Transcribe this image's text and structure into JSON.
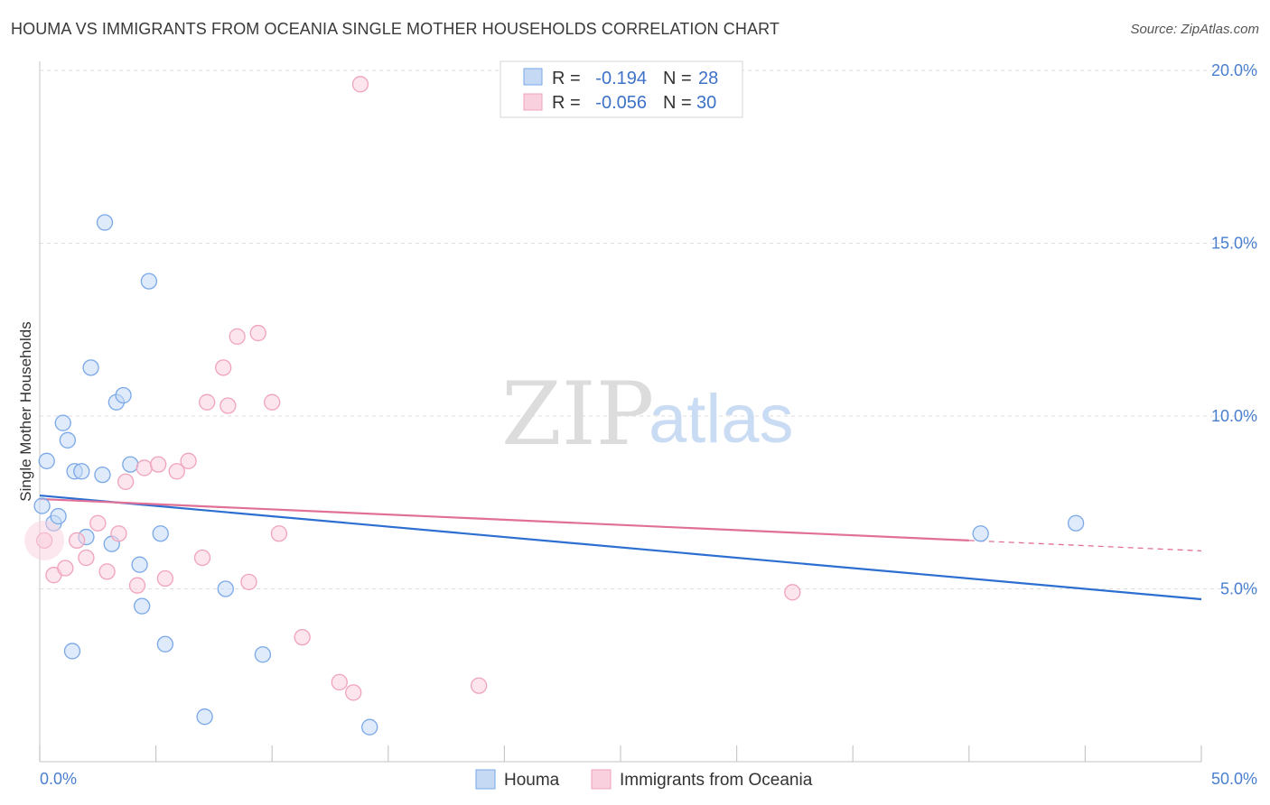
{
  "title": "HOUMA VS IMMIGRANTS FROM OCEANIA SINGLE MOTHER HOUSEHOLDS CORRELATION CHART",
  "source": "Source: ZipAtlas.com",
  "watermark": {
    "zip": "ZIP",
    "atlas": "atlas"
  },
  "chart_data": {
    "type": "scatter",
    "title": "HOUMA VS IMMIGRANTS FROM OCEANIA SINGLE MOTHER HOUSEHOLDS CORRELATION CHART",
    "xlabel": "",
    "ylabel": "Single Mother Households",
    "xlim": [
      0,
      50
    ],
    "ylim": [
      0,
      20.5
    ],
    "x_tick_labels": [
      "0.0%",
      "50.0%"
    ],
    "y_ticks": [
      5,
      10,
      15,
      20
    ],
    "y_tick_labels": [
      "5.0%",
      "10.0%",
      "15.0%",
      "20.0%"
    ],
    "legend_position": "top-center",
    "series": [
      {
        "name": "Houma",
        "color": "#7aa8e8",
        "fill": "#c5d9f5",
        "line_color": "#2d6fd1",
        "R_label": "R =",
        "R": "-0.194",
        "N_label": "N =",
        "N": "28",
        "trend": {
          "x0": 0,
          "y0": 7.7,
          "x1": 50,
          "y1": 4.7
        },
        "points": [
          [
            0.1,
            7.4
          ],
          [
            0.3,
            8.7
          ],
          [
            0.6,
            6.9
          ],
          [
            0.8,
            7.1
          ],
          [
            1.0,
            9.8
          ],
          [
            1.2,
            9.3
          ],
          [
            1.4,
            3.2
          ],
          [
            1.5,
            8.4
          ],
          [
            1.8,
            8.4
          ],
          [
            2.0,
            6.5
          ],
          [
            2.2,
            11.4
          ],
          [
            2.7,
            8.3
          ],
          [
            2.8,
            15.6
          ],
          [
            3.1,
            6.3
          ],
          [
            3.3,
            10.4
          ],
          [
            3.6,
            10.6
          ],
          [
            3.9,
            8.6
          ],
          [
            4.3,
            5.7
          ],
          [
            4.4,
            4.5
          ],
          [
            4.7,
            13.9
          ],
          [
            5.2,
            6.6
          ],
          [
            5.4,
            3.4
          ],
          [
            7.1,
            1.3
          ],
          [
            8.0,
            5.0
          ],
          [
            9.6,
            3.1
          ],
          [
            14.2,
            1.0
          ],
          [
            40.5,
            6.6
          ],
          [
            44.6,
            6.9
          ]
        ]
      },
      {
        "name": "Immigrants from Oceania",
        "color": "#f0a3bc",
        "fill": "#f9d0dd",
        "line_color": "#e07097",
        "R_label": "R =",
        "R": "-0.056",
        "N_label": "N =",
        "N": "30",
        "trend": {
          "x0": 0,
          "y0": 7.6,
          "x1": 40,
          "y1": 6.4,
          "dash_x1": 50,
          "dash_y1": 6.1
        },
        "points": [
          [
            0.2,
            6.4
          ],
          [
            0.6,
            5.4
          ],
          [
            1.1,
            5.6
          ],
          [
            1.6,
            6.4
          ],
          [
            2.0,
            5.9
          ],
          [
            2.5,
            6.9
          ],
          [
            2.9,
            5.5
          ],
          [
            3.4,
            6.6
          ],
          [
            3.7,
            8.1
          ],
          [
            4.2,
            5.1
          ],
          [
            4.5,
            8.5
          ],
          [
            5.1,
            8.6
          ],
          [
            5.4,
            5.3
          ],
          [
            5.9,
            8.4
          ],
          [
            6.4,
            8.7
          ],
          [
            7.0,
            5.9
          ],
          [
            7.2,
            10.4
          ],
          [
            7.9,
            11.4
          ],
          [
            8.1,
            10.3
          ],
          [
            8.5,
            12.3
          ],
          [
            9.0,
            5.2
          ],
          [
            9.4,
            12.4
          ],
          [
            10.0,
            10.4
          ],
          [
            10.3,
            6.6
          ],
          [
            11.3,
            3.6
          ],
          [
            12.9,
            2.3
          ],
          [
            13.5,
            2.0
          ],
          [
            13.8,
            19.6
          ],
          [
            18.9,
            2.2
          ],
          [
            32.4,
            4.9
          ]
        ]
      }
    ]
  },
  "bottom_legend": {
    "items": [
      "Houma",
      "Immigrants from Oceania"
    ]
  }
}
